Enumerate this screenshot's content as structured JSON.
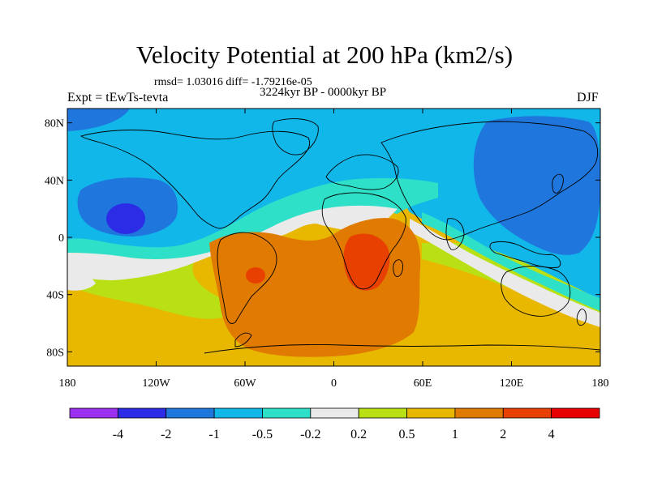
{
  "title": "Velocity Potential at 200 hPa (km2/s)",
  "stats": "rmsd= 1.03016 diff= -1.79216e-05",
  "period": "3224kyr BP - 0000kyr BP",
  "experiment": "Expt = tEwTs-tevta",
  "season": "DJF",
  "map": {
    "projection": "cylindrical equidistant",
    "lon_range": [
      -180,
      180
    ],
    "lat_range": [
      -90,
      90
    ],
    "y_ticks": [
      {
        "lat": 80,
        "label": "80N"
      },
      {
        "lat": 40,
        "label": "40N"
      },
      {
        "lat": 0,
        "label": "0"
      },
      {
        "lat": -40,
        "label": "40S"
      },
      {
        "lat": -80,
        "label": "80S"
      }
    ],
    "x_ticks": [
      {
        "lon": -180,
        "label": "180"
      },
      {
        "lon": -120,
        "label": "120W"
      },
      {
        "lon": -60,
        "label": "60W"
      },
      {
        "lon": 0,
        "label": "0"
      },
      {
        "lon": 60,
        "label": "60E"
      },
      {
        "lon": 120,
        "label": "120E"
      },
      {
        "lon": 180,
        "label": "180"
      }
    ]
  },
  "colorbar": {
    "colors": [
      "#9b30ee",
      "#2c2ce6",
      "#1f77dd",
      "#12b7ea",
      "#2fe0c8",
      "#eaeaea",
      "#b8e014",
      "#e8b800",
      "#e07a00",
      "#e84000",
      "#e80000"
    ],
    "labels": [
      "-4",
      "-2",
      "-1",
      "-0.5",
      "-0.2",
      "0.2",
      "0.5",
      "1",
      "2",
      "4"
    ]
  },
  "fields": {
    "levels": [
      "-0.5 to -1",
      "-0.2 to -0.5",
      "-0.2 to 0.2",
      "0.2 to 0.5",
      "0.5 to 1",
      "1 to 2",
      "2 to 4"
    ],
    "features": [
      {
        "name": "blue minimum North Pacific",
        "lon": -145,
        "lat": 13,
        "level": "-1 to -2"
      },
      {
        "name": "blue minimum West Pacific / East Asia",
        "lon": 140,
        "lat": 40,
        "level": "-0.5 to -1"
      },
      {
        "name": "orange maximum South America",
        "lon": -50,
        "lat": -28,
        "level": "1 to 2"
      },
      {
        "name": "red maximum Africa",
        "lon": 25,
        "lat": -17,
        "level": "2 to 4"
      },
      {
        "name": "red maximum South America",
        "lon": -55,
        "lat": -21,
        "level": "2 to 4"
      }
    ]
  }
}
